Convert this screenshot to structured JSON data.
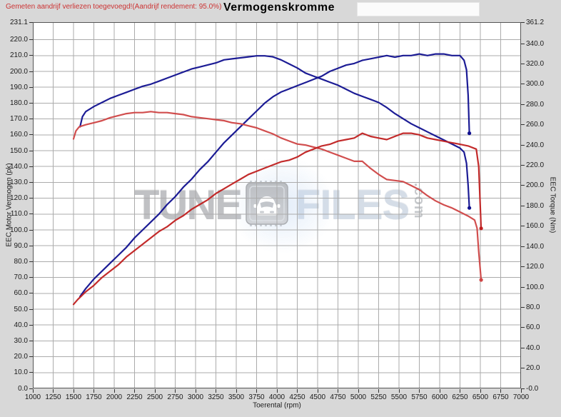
{
  "header": {
    "note": "Gemeten aandrijf verliezen toegevoegd!(Aandrijf rendement: 95.0%)"
  },
  "watermark": {
    "word1": "TUNE",
    "word2": "FILES",
    "suffix": ".com",
    "icon": "car-chip-icon"
  },
  "colors": {
    "tuned": "#10108f",
    "original_power": "#c02020",
    "original_torque": "#cf4545",
    "grid": "#ababab",
    "plot_border": "#555555",
    "note_red": "#cc3333",
    "page_bg": "#d8d8d8"
  },
  "chart_data": {
    "type": "line",
    "title": "Vermogenskromme",
    "xlabel": "Toerental (rpm)",
    "ylabel_left": "EEC Motor Vermogen (pk)",
    "ylabel_right": "EEC Torque (Nm)",
    "xlim": [
      1000,
      7000
    ],
    "ylim_left": [
      0,
      231.1
    ],
    "ylim_right": [
      0,
      361.2
    ],
    "grid": true,
    "legend": "none",
    "x_tick_labels": [
      "1000",
      "1250",
      "1500",
      "1750",
      "2000",
      "2250",
      "2500",
      "2750",
      "3000",
      "3250",
      "3500",
      "3750",
      "4000",
      "4250",
      "4500",
      "4750",
      "5000",
      "5250",
      "5500",
      "5750",
      "6000",
      "6250",
      "6500",
      "6750",
      "7000"
    ],
    "y_left_tick_labels": [
      "231.1",
      "220.0",
      "210.0",
      "200.0",
      "190.0",
      "180.0",
      "170.0",
      "160.0",
      "150.0",
      "140.0",
      "130.0",
      "120.0",
      "110.0",
      "100.0",
      "90.0",
      "80.0",
      "70.0",
      "60.0",
      "50.0",
      "40.0",
      "30.0",
      "20.0",
      "10.0",
      "0.0"
    ],
    "y_right_tick_labels": [
      "361.2",
      "340.0",
      "320.0",
      "300.0",
      "280.0",
      "260.0",
      "240.0",
      "220.0",
      "200.0",
      "180.0",
      "160.0",
      "140.0",
      "120.0",
      "100.0",
      "80.0",
      "60.0",
      "40.0",
      "20.0",
      "-0.0"
    ],
    "series": [
      {
        "name": "torque-tuned",
        "axis": "right",
        "unit": "Nm",
        "color": "#10108f",
        "points": [
          [
            1580,
            258
          ],
          [
            1610,
            268
          ],
          [
            1650,
            273
          ],
          [
            1750,
            278
          ],
          [
            1850,
            282
          ],
          [
            1950,
            286
          ],
          [
            2050,
            289
          ],
          [
            2150,
            292
          ],
          [
            2250,
            295
          ],
          [
            2350,
            298
          ],
          [
            2450,
            300
          ],
          [
            2550,
            303
          ],
          [
            2650,
            306
          ],
          [
            2750,
            309
          ],
          [
            2850,
            312
          ],
          [
            2950,
            315
          ],
          [
            3050,
            317
          ],
          [
            3150,
            319
          ],
          [
            3250,
            321
          ],
          [
            3350,
            324
          ],
          [
            3450,
            325
          ],
          [
            3550,
            326
          ],
          [
            3650,
            327
          ],
          [
            3750,
            328
          ],
          [
            3850,
            328
          ],
          [
            3950,
            327
          ],
          [
            4050,
            324
          ],
          [
            4150,
            320
          ],
          [
            4250,
            316
          ],
          [
            4350,
            311
          ],
          [
            4450,
            308
          ],
          [
            4550,
            305
          ],
          [
            4650,
            302
          ],
          [
            4750,
            299
          ],
          [
            4850,
            295
          ],
          [
            4950,
            291
          ],
          [
            5050,
            288
          ],
          [
            5150,
            285
          ],
          [
            5250,
            282
          ],
          [
            5350,
            277
          ],
          [
            5450,
            271
          ],
          [
            5550,
            266
          ],
          [
            5650,
            261
          ],
          [
            5750,
            257
          ],
          [
            5850,
            253
          ],
          [
            5950,
            249
          ],
          [
            6050,
            245
          ],
          [
            6150,
            241
          ],
          [
            6250,
            237
          ],
          [
            6300,
            233
          ],
          [
            6330,
            222
          ],
          [
            6350,
            200
          ],
          [
            6365,
            178
          ]
        ]
      },
      {
        "name": "power-tuned",
        "axis": "left",
        "unit": "pk",
        "color": "#10108f",
        "points": [
          [
            1580,
            58
          ],
          [
            1650,
            63
          ],
          [
            1750,
            69
          ],
          [
            1850,
            74
          ],
          [
            1950,
            79
          ],
          [
            2050,
            84
          ],
          [
            2150,
            89
          ],
          [
            2250,
            95
          ],
          [
            2350,
            100
          ],
          [
            2450,
            105
          ],
          [
            2550,
            110
          ],
          [
            2650,
            116
          ],
          [
            2750,
            121
          ],
          [
            2850,
            127
          ],
          [
            2950,
            132
          ],
          [
            3050,
            138
          ],
          [
            3150,
            143
          ],
          [
            3250,
            149
          ],
          [
            3350,
            155
          ],
          [
            3450,
            160
          ],
          [
            3550,
            165
          ],
          [
            3650,
            170
          ],
          [
            3750,
            175
          ],
          [
            3850,
            180
          ],
          [
            3950,
            184
          ],
          [
            4050,
            187
          ],
          [
            4150,
            189
          ],
          [
            4250,
            191
          ],
          [
            4350,
            193
          ],
          [
            4450,
            195
          ],
          [
            4550,
            197
          ],
          [
            4650,
            200
          ],
          [
            4750,
            202
          ],
          [
            4850,
            204
          ],
          [
            4950,
            205
          ],
          [
            5050,
            207
          ],
          [
            5150,
            208
          ],
          [
            5250,
            209
          ],
          [
            5350,
            210
          ],
          [
            5450,
            209
          ],
          [
            5550,
            210
          ],
          [
            5650,
            210
          ],
          [
            5750,
            211
          ],
          [
            5850,
            210
          ],
          [
            5950,
            211
          ],
          [
            6050,
            211
          ],
          [
            6150,
            210
          ],
          [
            6250,
            210
          ],
          [
            6300,
            207
          ],
          [
            6330,
            201
          ],
          [
            6350,
            185
          ],
          [
            6365,
            161
          ]
        ]
      },
      {
        "name": "torque-original",
        "axis": "right",
        "unit": "Nm",
        "color": "#cf4545",
        "points": [
          [
            1500,
            246
          ],
          [
            1530,
            254
          ],
          [
            1570,
            258
          ],
          [
            1650,
            260
          ],
          [
            1750,
            262
          ],
          [
            1850,
            264
          ],
          [
            1950,
            267
          ],
          [
            2050,
            269
          ],
          [
            2150,
            271
          ],
          [
            2250,
            272
          ],
          [
            2350,
            272
          ],
          [
            2450,
            273
          ],
          [
            2550,
            272
          ],
          [
            2650,
            272
          ],
          [
            2750,
            271
          ],
          [
            2850,
            270
          ],
          [
            2950,
            268
          ],
          [
            3050,
            267
          ],
          [
            3150,
            266
          ],
          [
            3250,
            265
          ],
          [
            3350,
            264
          ],
          [
            3450,
            262
          ],
          [
            3550,
            261
          ],
          [
            3650,
            259
          ],
          [
            3750,
            257
          ],
          [
            3850,
            254
          ],
          [
            3950,
            251
          ],
          [
            4050,
            247
          ],
          [
            4150,
            244
          ],
          [
            4250,
            241
          ],
          [
            4350,
            240
          ],
          [
            4450,
            238
          ],
          [
            4550,
            236
          ],
          [
            4650,
            233
          ],
          [
            4750,
            230
          ],
          [
            4850,
            227
          ],
          [
            4950,
            224
          ],
          [
            5050,
            224
          ],
          [
            5150,
            217
          ],
          [
            5250,
            211
          ],
          [
            5350,
            206
          ],
          [
            5450,
            205
          ],
          [
            5550,
            204
          ],
          [
            5650,
            200
          ],
          [
            5750,
            196
          ],
          [
            5850,
            190
          ],
          [
            5950,
            185
          ],
          [
            6050,
            181
          ],
          [
            6150,
            178
          ],
          [
            6250,
            174
          ],
          [
            6350,
            170
          ],
          [
            6430,
            166
          ],
          [
            6460,
            158
          ],
          [
            6480,
            135
          ],
          [
            6510,
            107
          ]
        ]
      },
      {
        "name": "power-original",
        "axis": "left",
        "unit": "pk",
        "color": "#c02020",
        "points": [
          [
            1500,
            53
          ],
          [
            1550,
            56
          ],
          [
            1650,
            61
          ],
          [
            1750,
            65
          ],
          [
            1850,
            70
          ],
          [
            1950,
            74
          ],
          [
            2050,
            78
          ],
          [
            2150,
            83
          ],
          [
            2250,
            87
          ],
          [
            2350,
            91
          ],
          [
            2450,
            95
          ],
          [
            2550,
            99
          ],
          [
            2650,
            102
          ],
          [
            2750,
            106
          ],
          [
            2850,
            109
          ],
          [
            2950,
            113
          ],
          [
            3050,
            116
          ],
          [
            3150,
            119
          ],
          [
            3250,
            123
          ],
          [
            3350,
            126
          ],
          [
            3450,
            129
          ],
          [
            3550,
            132
          ],
          [
            3650,
            135
          ],
          [
            3750,
            137
          ],
          [
            3850,
            139
          ],
          [
            3950,
            141
          ],
          [
            4050,
            143
          ],
          [
            4150,
            144
          ],
          [
            4250,
            146
          ],
          [
            4350,
            149
          ],
          [
            4450,
            151
          ],
          [
            4550,
            153
          ],
          [
            4650,
            154
          ],
          [
            4750,
            156
          ],
          [
            4850,
            157
          ],
          [
            4950,
            158
          ],
          [
            5050,
            161
          ],
          [
            5150,
            159
          ],
          [
            5250,
            158
          ],
          [
            5350,
            157
          ],
          [
            5450,
            159
          ],
          [
            5550,
            161
          ],
          [
            5650,
            161
          ],
          [
            5750,
            160
          ],
          [
            5850,
            158
          ],
          [
            5950,
            157
          ],
          [
            6050,
            156
          ],
          [
            6150,
            155
          ],
          [
            6250,
            154
          ],
          [
            6350,
            153
          ],
          [
            6450,
            151
          ],
          [
            6480,
            140
          ],
          [
            6510,
            101
          ]
        ]
      }
    ]
  }
}
